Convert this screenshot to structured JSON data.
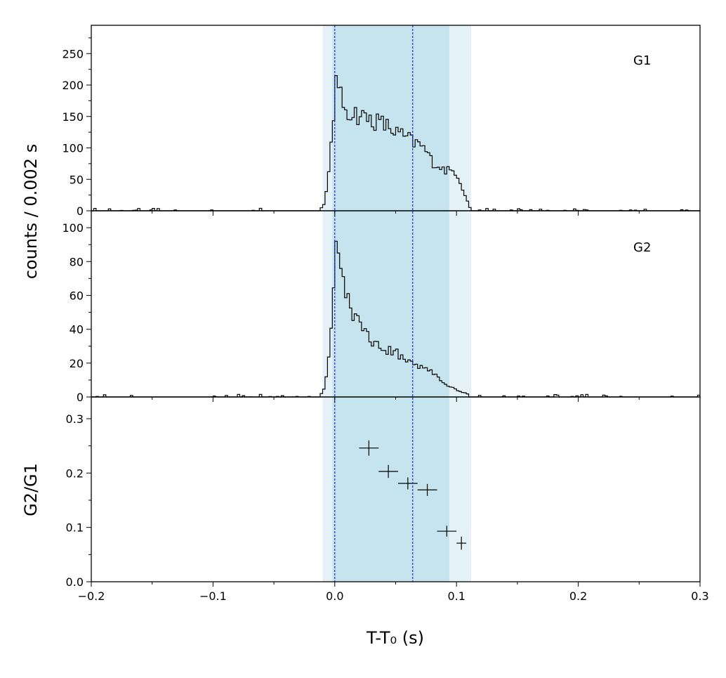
{
  "chart_data": [
    {
      "type": "line",
      "name": "G1",
      "panel_label": "G1",
      "x_range": [
        -0.2,
        0.3
      ],
      "ylim": [
        0,
        295
      ],
      "yticks": [
        0,
        50,
        100,
        150,
        200,
        250
      ],
      "bin_width": 0.002,
      "peak": {
        "x": 0.001,
        "y": 215
      },
      "profile": [
        [
          -0.2,
          2
        ],
        [
          -0.012,
          2
        ],
        [
          -0.008,
          12
        ],
        [
          -0.005,
          60
        ],
        [
          -0.002,
          140
        ],
        [
          0.0,
          170
        ],
        [
          0.001,
          215
        ],
        [
          0.003,
          185
        ],
        [
          0.01,
          160
        ],
        [
          0.02,
          152
        ],
        [
          0.03,
          145
        ],
        [
          0.04,
          138
        ],
        [
          0.05,
          125
        ],
        [
          0.06,
          115
        ],
        [
          0.065,
          108
        ],
        [
          0.07,
          105
        ],
        [
          0.075,
          95
        ],
        [
          0.08,
          78
        ],
        [
          0.085,
          72
        ],
        [
          0.09,
          65
        ],
        [
          0.1,
          62
        ],
        [
          0.104,
          40
        ],
        [
          0.108,
          22
        ],
        [
          0.111,
          5
        ],
        [
          0.113,
          2
        ],
        [
          0.3,
          2
        ]
      ],
      "noise": 4
    },
    {
      "type": "line",
      "name": "G2",
      "panel_label": "G2",
      "x_range": [
        -0.2,
        0.3
      ],
      "ylim": [
        0,
        110
      ],
      "yticks": [
        0,
        20,
        40,
        60,
        80,
        100
      ],
      "bin_width": 0.002,
      "peak": {
        "x": 0.001,
        "y": 92
      },
      "profile": [
        [
          -0.2,
          0.8
        ],
        [
          -0.012,
          0.8
        ],
        [
          -0.008,
          6
        ],
        [
          -0.005,
          25
        ],
        [
          -0.002,
          55
        ],
        [
          0.0,
          70
        ],
        [
          0.001,
          92
        ],
        [
          0.003,
          78
        ],
        [
          0.008,
          62
        ],
        [
          0.015,
          50
        ],
        [
          0.025,
          38
        ],
        [
          0.035,
          30
        ],
        [
          0.05,
          26
        ],
        [
          0.06,
          22
        ],
        [
          0.07,
          18
        ],
        [
          0.08,
          15
        ],
        [
          0.09,
          8
        ],
        [
          0.1,
          4
        ],
        [
          0.108,
          2
        ],
        [
          0.112,
          0.8
        ],
        [
          0.3,
          0.8
        ]
      ],
      "noise": 1.6
    },
    {
      "type": "scatter",
      "name": "G2/G1",
      "xlabel": "T-T₀ (s)",
      "x_range": [
        -0.2,
        0.3
      ],
      "xticks": [
        -0.2,
        -0.1,
        0.0,
        0.1,
        0.2,
        0.3
      ],
      "ylim": [
        0,
        0.34
      ],
      "yticks": [
        0.0,
        0.1,
        0.2,
        0.3
      ],
      "points": [
        {
          "x": 0.028,
          "xerr": 0.008,
          "y": 0.246,
          "yerr": 0.014
        },
        {
          "x": 0.044,
          "xerr": 0.008,
          "y": 0.203,
          "yerr": 0.012
        },
        {
          "x": 0.06,
          "xerr": 0.008,
          "y": 0.181,
          "yerr": 0.011
        },
        {
          "x": 0.076,
          "xerr": 0.008,
          "y": 0.169,
          "yerr": 0.011
        },
        {
          "x": 0.092,
          "xerr": 0.008,
          "y": 0.093,
          "yerr": 0.01
        },
        {
          "x": 0.104,
          "xerr": 0.004,
          "y": 0.071,
          "yerr": 0.012
        }
      ]
    }
  ],
  "shared": {
    "ylabel_counts": "counts /  0.002 s",
    "light_band": {
      "from": -0.01,
      "to": 0.112,
      "color": "#e4f2f7"
    },
    "dark_band": {
      "from": -0.002,
      "to": 0.094,
      "color": "#c6e4ed"
    },
    "vlines": [
      0.0,
      0.064
    ],
    "vline_color": "#2222ee"
  }
}
